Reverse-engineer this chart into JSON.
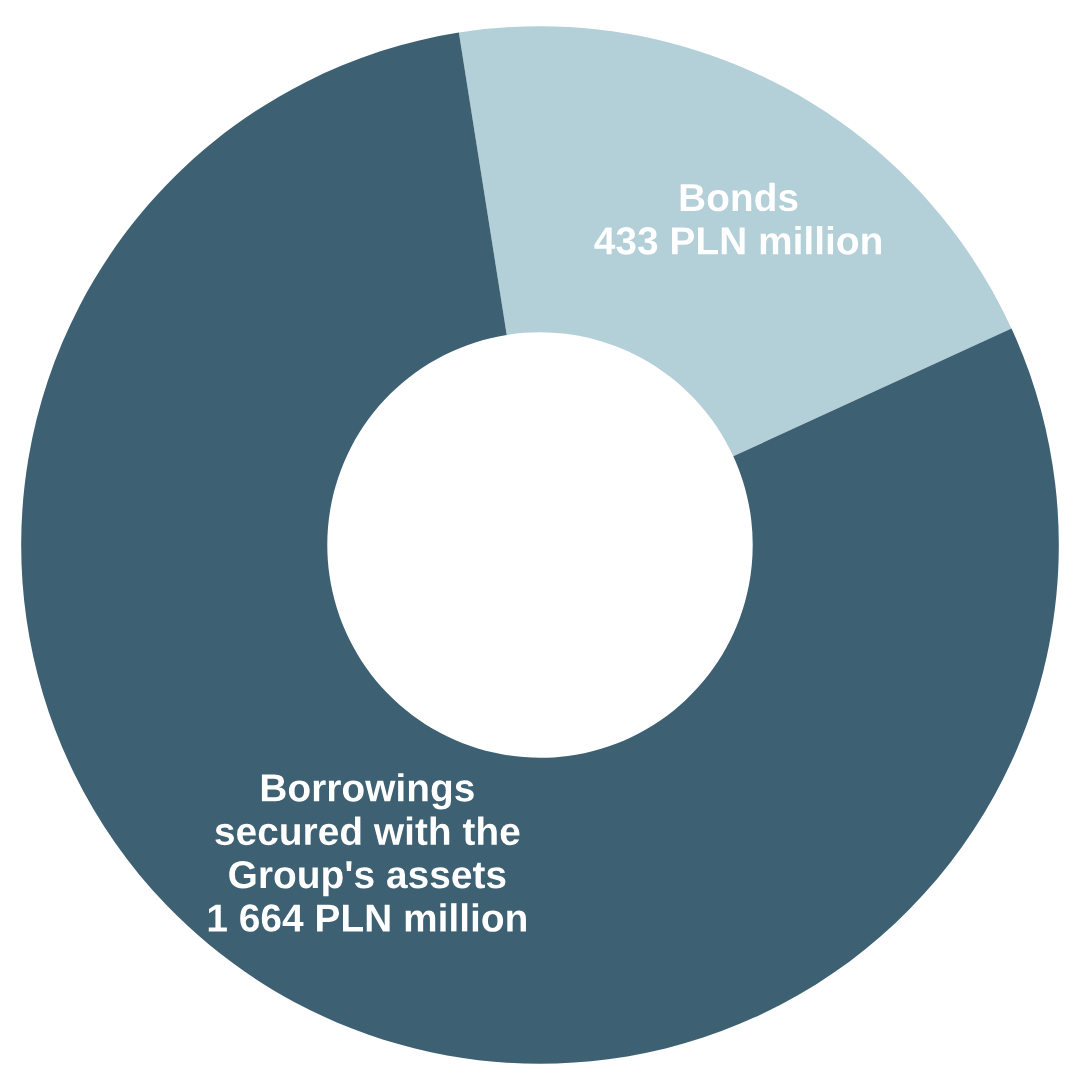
{
  "chart_data": {
    "type": "donut",
    "categories": [
      "Bonds",
      "Borrowings\nsecured with the\nGroup's assets"
    ],
    "values": [
      433,
      1664
    ],
    "value_labels": [
      "433 PLN million",
      "1 664 PLN million"
    ],
    "colors": [
      "#b3cfd8",
      "#3d6073"
    ],
    "legend": false
  }
}
